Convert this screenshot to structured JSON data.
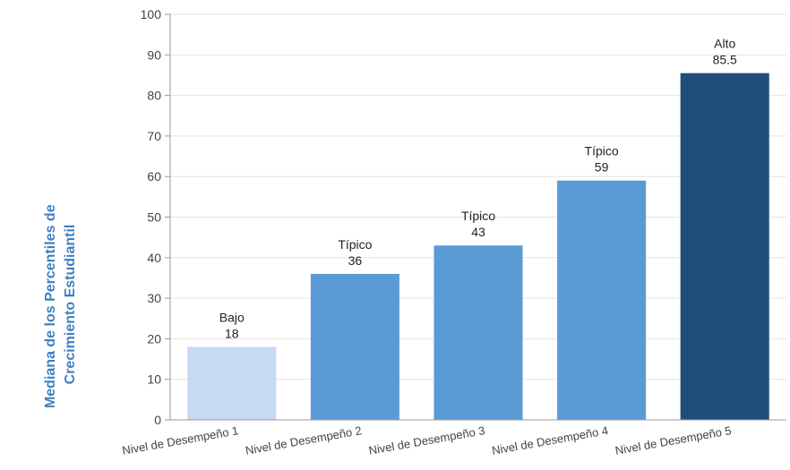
{
  "chart_data": {
    "type": "bar",
    "categories": [
      "Nivel de Desempeño 1",
      "Nivel de Desempeño 2",
      "Nivel de Desempeño 3",
      "Nivel de Desempeño 4",
      "Nivel de Desempeño 5"
    ],
    "values": [
      18,
      36,
      43,
      59,
      85.5
    ],
    "bar_labels": [
      "Bajo",
      "Típico",
      "Típico",
      "Típico",
      "Alto"
    ],
    "bar_colors": [
      "#c6dbf2",
      "#5b9bd5",
      "#5b9bd5",
      "#5b9bd5",
      "#1f4e79"
    ],
    "ylabel": [
      "Mediana de los Percentiles de",
      "Crecimiento Estudiantil"
    ],
    "xlabel": "",
    "ylim": [
      0,
      100
    ],
    "yticks": [
      0,
      10,
      20,
      30,
      40,
      50,
      60,
      70,
      80,
      90,
      100
    ],
    "grid": true,
    "legend": "none"
  },
  "colors": {
    "ylabel": "#3d7fc1",
    "grid": "#e3e3e3",
    "axis": "#999999"
  }
}
